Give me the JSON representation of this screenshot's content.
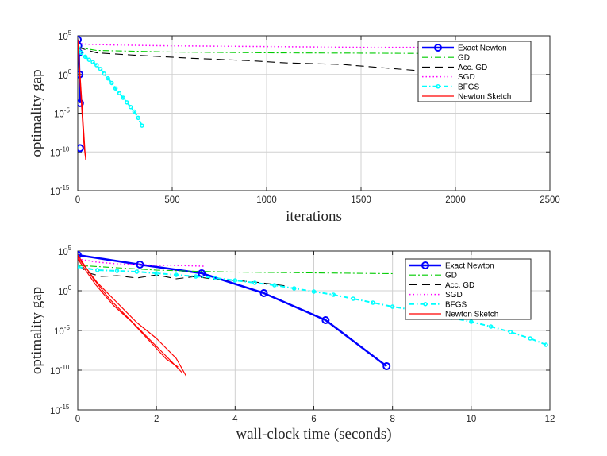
{
  "chart_data": [
    {
      "type": "line",
      "yscale": "log",
      "xlabel": "iterations",
      "ylabel": "optimality gap",
      "xlim": [
        0,
        2500
      ],
      "ylim_exponent": [
        -15,
        5
      ],
      "xticks": [
        "0",
        "500",
        "1000",
        "1500",
        "2000",
        "2500"
      ],
      "yticks": [
        {
          "base": "10",
          "exp": "5",
          "value": 5
        },
        {
          "base": "10",
          "exp": "0",
          "value": 0
        },
        {
          "base": "10",
          "exp": "-5",
          "value": -5
        },
        {
          "base": "10",
          "exp": "-10",
          "value": -10
        },
        {
          "base": "10",
          "exp": "-15",
          "value": -15
        }
      ],
      "grid": true,
      "legend_position": "top-right",
      "legend": [
        "Exact Newton",
        "GD",
        "Acc. GD",
        "SGD",
        "BFGS",
        "Newton Sketch"
      ],
      "series": [
        {
          "name": "Exact Newton",
          "color": "#0000ff",
          "marker": "circle",
          "x": [
            0,
            3,
            6,
            9,
            12
          ],
          "log10_y": [
            4.5,
            3.7,
            2.8,
            0.0,
            -3.7
          ]
        },
        {
          "name": "Exact Newton (final)",
          "color": "#0000ff",
          "x": [
            12
          ],
          "log10_y": [
            -9.5
          ]
        },
        {
          "name": "GD",
          "color": "#00cc00",
          "x": [
            0,
            100,
            500,
            1000,
            1500,
            2000,
            2300
          ],
          "log10_y": [
            3.5,
            3.1,
            2.9,
            2.8,
            2.75,
            2.7,
            2.7
          ]
        },
        {
          "name": "Acc. GD",
          "color": "#000000",
          "x": [
            0,
            100,
            300,
            600,
            900,
            1100,
            1400,
            1600,
            1800,
            1950,
            2020
          ],
          "log10_y": [
            3.5,
            2.8,
            2.5,
            2.1,
            1.8,
            1.5,
            1.3,
            0.9,
            0.5,
            0.3,
            0.2
          ]
        },
        {
          "name": "SGD",
          "color": "#ff00ff",
          "x": [
            0,
            50,
            200,
            500,
            1000,
            1500,
            2000,
            2300
          ],
          "log10_y": [
            4.0,
            3.9,
            3.8,
            3.7,
            3.6,
            3.5,
            3.5,
            3.4
          ]
        },
        {
          "name": "BFGS",
          "color": "#00ffff",
          "marker": "circle-small",
          "x": [
            0,
            20,
            40,
            60,
            80,
            100,
            120,
            140,
            160,
            180,
            200,
            220,
            240,
            260,
            280,
            300,
            320,
            340
          ],
          "log10_y": [
            3.5,
            2.8,
            2.3,
            1.9,
            1.6,
            1.2,
            0.7,
            0.1,
            -0.5,
            -1.1,
            -1.8,
            -2.4,
            -3.0,
            -3.6,
            -4.2,
            -4.8,
            -5.6,
            -6.6
          ]
        },
        {
          "name": "Newton Sketch",
          "color": "#ff0000",
          "x": [
            0,
            5,
            10,
            15,
            20,
            25,
            30,
            35,
            40
          ],
          "log10_y": [
            4.5,
            2.0,
            0.0,
            -2.0,
            -4.0,
            -6.0,
            -8.0,
            -9.5,
            -10.5
          ]
        },
        {
          "name": "Newton Sketch (run 2)",
          "color": "#ff0000",
          "x": [
            0,
            8,
            16,
            24,
            32,
            38,
            42
          ],
          "log10_y": [
            4.5,
            1.5,
            -1.5,
            -4.5,
            -7.5,
            -9.8,
            -11.0
          ]
        }
      ]
    },
    {
      "type": "line",
      "yscale": "log",
      "xlabel": "wall-clock time (seconds)",
      "ylabel": "optimality gap",
      "xlim": [
        0,
        12
      ],
      "ylim_exponent": [
        -15,
        5
      ],
      "xticks": [
        "0",
        "2",
        "4",
        "6",
        "8",
        "10",
        "12"
      ],
      "yticks": [
        {
          "base": "10",
          "exp": "5",
          "value": 5
        },
        {
          "base": "10",
          "exp": "0",
          "value": 0
        },
        {
          "base": "10",
          "exp": "-5",
          "value": -5
        },
        {
          "base": "10",
          "exp": "-10",
          "value": -10
        },
        {
          "base": "10",
          "exp": "-15",
          "value": -15
        }
      ],
      "grid": true,
      "legend_position": "top-right",
      "legend": [
        "Exact Newton",
        "GD",
        "Acc. GD",
        "SGD",
        "BFGS",
        "Newton Sketch"
      ],
      "series": [
        {
          "name": "Exact Newton",
          "color": "#0000ff",
          "marker": "circle",
          "x": [
            0,
            1.58,
            3.15,
            4.73,
            6.3,
            7.85
          ],
          "log10_y": [
            4.5,
            3.3,
            2.2,
            -0.3,
            -3.7,
            -9.5
          ]
        },
        {
          "name": "GD",
          "color": "#00cc00",
          "x": [
            0,
            1,
            2,
            3,
            4,
            5,
            6,
            7,
            8
          ],
          "log10_y": [
            3.2,
            2.9,
            2.6,
            2.45,
            2.35,
            2.3,
            2.25,
            2.2,
            2.15
          ]
        },
        {
          "name": "Acc. GD",
          "color": "#000000",
          "x": [
            0,
            0.3,
            0.6,
            1.0,
            1.5,
            2.0,
            2.5,
            3.0,
            3.5,
            4.0,
            4.5,
            5.0,
            5.3
          ],
          "log10_y": [
            3.2,
            2.2,
            1.8,
            1.9,
            1.6,
            2.0,
            1.5,
            1.8,
            1.4,
            1.3,
            1.1,
            0.8,
            0.6
          ]
        },
        {
          "name": "SGD",
          "color": "#ff00ff",
          "x": [
            0,
            0.5,
            1.0,
            1.5,
            2.0,
            2.5,
            3.2
          ],
          "log10_y": [
            4.0,
            3.6,
            3.4,
            3.3,
            3.2,
            3.2,
            3.1
          ]
        },
        {
          "name": "BFGS",
          "color": "#00ffff",
          "marker": "circle-small",
          "x": [
            0,
            0.5,
            1,
            1.5,
            2,
            2.5,
            3,
            3.5,
            4,
            4.5,
            5,
            5.5,
            6,
            6.5,
            7,
            7.5,
            8,
            8.5,
            9,
            9.5,
            10,
            10.5,
            11,
            11.5,
            11.9
          ],
          "log10_y": [
            3.0,
            2.6,
            2.5,
            2.4,
            2.2,
            2.0,
            1.8,
            1.6,
            1.3,
            1.0,
            0.7,
            0.3,
            -0.1,
            -0.5,
            -1.0,
            -1.5,
            -2.0,
            -2.4,
            -2.9,
            -3.4,
            -3.9,
            -4.5,
            -5.2,
            -6.0,
            -6.8
          ]
        },
        {
          "name": "Newton Sketch",
          "color": "#ff0000",
          "x": [
            0,
            0.4,
            0.8,
            1.2,
            1.6,
            2.0,
            2.4,
            2.65
          ],
          "log10_y": [
            4.5,
            1.5,
            -1.0,
            -3.0,
            -5.0,
            -7.0,
            -9.0,
            -10.3
          ]
        },
        {
          "name": "Newton Sketch (run 2)",
          "color": "#ff0000",
          "x": [
            0,
            0.5,
            1.0,
            1.5,
            2.0,
            2.5,
            2.75
          ],
          "log10_y": [
            4.2,
            1.0,
            -1.5,
            -4.0,
            -6.0,
            -8.5,
            -10.7
          ]
        },
        {
          "name": "Newton Sketch (run 3)",
          "color": "#ff0000",
          "x": [
            0,
            0.45,
            0.9,
            1.35,
            1.8,
            2.25,
            2.55
          ],
          "log10_y": [
            4.0,
            0.8,
            -1.8,
            -3.8,
            -6.2,
            -8.6,
            -9.6
          ]
        }
      ]
    }
  ]
}
